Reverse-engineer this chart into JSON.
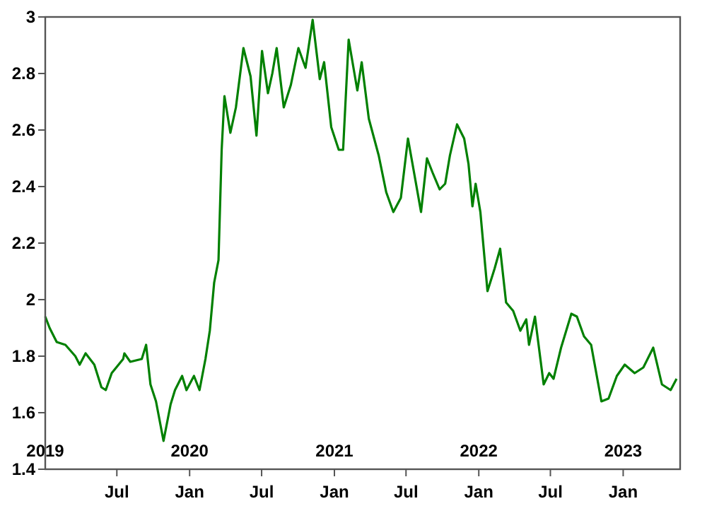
{
  "chart_data": {
    "type": "line",
    "xlim": [
      "2019-01-01",
      "2023-05-25"
    ],
    "ylim": [
      1.4,
      3
    ],
    "yticks": [
      1.4,
      1.6,
      1.8,
      2,
      2.2,
      2.4,
      2.6,
      2.8,
      3
    ],
    "xticks": [
      {
        "value": "2019-07-01",
        "label": "Jul"
      },
      {
        "value": "2020-01-01",
        "label": "Jan"
      },
      {
        "value": "2020-07-01",
        "label": "Jul"
      },
      {
        "value": "2021-01-01",
        "label": "Jan"
      },
      {
        "value": "2021-07-01",
        "label": "Jul"
      },
      {
        "value": "2022-01-01",
        "label": "Jan"
      },
      {
        "value": "2022-07-01",
        "label": "Jul"
      },
      {
        "value": "2023-01-01",
        "label": "Jan"
      }
    ],
    "x2lim": [
      "2019-01-01",
      "2023-05-25"
    ],
    "x2ticks": [
      {
        "value": "2019-01-01",
        "label": "2019"
      },
      {
        "value": "2020-01-01",
        "label": "2020"
      },
      {
        "value": "2021-01-01",
        "label": "2021"
      },
      {
        "value": "2022-01-01",
        "label": "2022"
      },
      {
        "value": "2023-01-01",
        "label": "2023"
      }
    ],
    "grid": false,
    "marker": "none",
    "line_style": "solid",
    "x": [
      "2019-01-01",
      "2019-01-12",
      "2019-01-30",
      "2019-02-21",
      "2019-03-18",
      "2019-03-29",
      "2019-04-13",
      "2019-05-05",
      "2019-05-23",
      "2019-06-03",
      "2019-06-18",
      "2019-07-17",
      "2019-07-20",
      "2019-08-04",
      "2019-09-02",
      "2019-09-13",
      "2019-09-24",
      "2019-10-08",
      "2019-10-27",
      "2019-11-14",
      "2019-11-25",
      "2019-12-13",
      "2019-12-24",
      "2020-01-12",
      "2020-01-26",
      "2020-02-10",
      "2020-02-21",
      "2020-03-03",
      "2020-03-14",
      "2020-03-22",
      "2020-03-29",
      "2020-04-13",
      "2020-04-27",
      "2020-05-16",
      "2020-06-03",
      "2020-06-18",
      "2020-07-02",
      "2020-07-17",
      "2020-07-28",
      "2020-08-08",
      "2020-08-26",
      "2020-09-13",
      "2020-10-02",
      "2020-10-20",
      "2020-11-07",
      "2020-11-25",
      "2020-12-06",
      "2020-12-24",
      "2021-01-12",
      "2021-01-23",
      "2021-02-06",
      "2021-02-28",
      "2021-03-11",
      "2021-03-29",
      "2021-04-23",
      "2021-05-12",
      "2021-05-30",
      "2021-06-18",
      "2021-07-06",
      "2021-07-20",
      "2021-08-08",
      "2021-08-23",
      "2021-09-06",
      "2021-09-24",
      "2021-10-08",
      "2021-10-20",
      "2021-11-07",
      "2021-11-25",
      "2021-12-06",
      "2021-12-16",
      "2021-12-24",
      "2022-01-05",
      "2022-01-23",
      "2022-02-10",
      "2022-02-24",
      "2022-03-11",
      "2022-03-29",
      "2022-04-16",
      "2022-05-01",
      "2022-05-08",
      "2022-05-23",
      "2022-06-14",
      "2022-06-28",
      "2022-07-09",
      "2022-07-28",
      "2022-08-23",
      "2022-09-06",
      "2022-09-24",
      "2022-10-12",
      "2022-11-07",
      "2022-11-25",
      "2022-12-16",
      "2023-01-05",
      "2023-01-30",
      "2023-02-21",
      "2023-03-18",
      "2023-04-09",
      "2023-05-01",
      "2023-05-16"
    ],
    "series": [
      {
        "color": "#008000",
        "values": [
          1.94,
          1.9,
          1.85,
          1.84,
          1.8,
          1.77,
          1.81,
          1.77,
          1.69,
          1.68,
          1.74,
          1.79,
          1.81,
          1.78,
          1.79,
          1.84,
          1.7,
          1.64,
          1.5,
          1.63,
          1.68,
          1.73,
          1.68,
          1.73,
          1.68,
          1.79,
          1.89,
          2.06,
          2.14,
          2.53,
          2.72,
          2.59,
          2.68,
          2.89,
          2.79,
          2.58,
          2.88,
          2.73,
          2.8,
          2.89,
          2.68,
          2.76,
          2.89,
          2.82,
          2.99,
          2.78,
          2.84,
          2.61,
          2.53,
          2.53,
          2.92,
          2.74,
          2.84,
          2.64,
          2.51,
          2.38,
          2.31,
          2.36,
          2.57,
          2.46,
          2.31,
          2.5,
          2.45,
          2.39,
          2.41,
          2.51,
          2.62,
          2.57,
          2.48,
          2.33,
          2.41,
          2.31,
          2.03,
          2.11,
          2.18,
          1.99,
          1.96,
          1.89,
          1.93,
          1.84,
          1.94,
          1.7,
          1.74,
          1.72,
          1.83,
          1.95,
          1.94,
          1.87,
          1.84,
          1.64,
          1.65,
          1.73,
          1.77,
          1.74,
          1.76,
          1.83,
          1.7,
          1.68,
          1.72
        ]
      }
    ]
  }
}
